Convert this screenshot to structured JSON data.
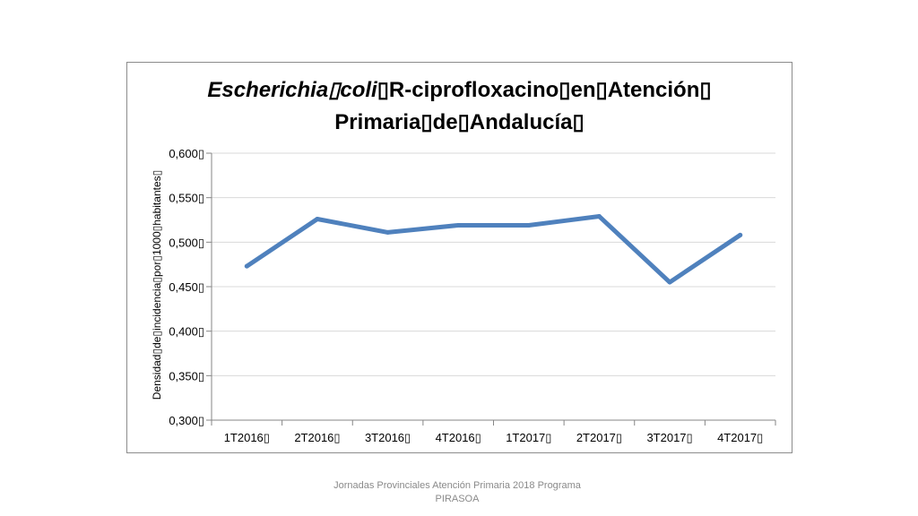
{
  "chart_data": {
    "type": "line",
    "title_line1_italic": "Escherichia▯coli",
    "title_line1_rest": "▯R-ciprofloxacino▯en▯Atención▯",
    "title_line2": "Primaria▯de▯Andalucía▯",
    "ylabel": "Densidad▯de▯incidencia▯por▯1000▯habitantes▯",
    "categories": [
      "1T2016▯",
      "2T2016▯",
      "3T2016▯",
      "4T2016▯",
      "1T2017▯",
      "2T2017▯",
      "3T2017▯",
      "4T2017▯"
    ],
    "series": [
      {
        "values": [
          0.473,
          0.526,
          0.511,
          0.519,
          0.519,
          0.529,
          0.455,
          0.508
        ],
        "color": "#4f81bd"
      }
    ],
    "ylim": [
      0.3,
      0.6
    ],
    "yticks": [
      "0,300▯",
      "0,350▯",
      "0,400▯",
      "0,450▯",
      "0,500▯",
      "0,550▯",
      "0,600▯"
    ],
    "grid": true,
    "legend": "none"
  },
  "footer": {
    "line1": "Jornadas Provinciales Atención Primaria 2018  Programa",
    "line2": "PIRASOA"
  }
}
